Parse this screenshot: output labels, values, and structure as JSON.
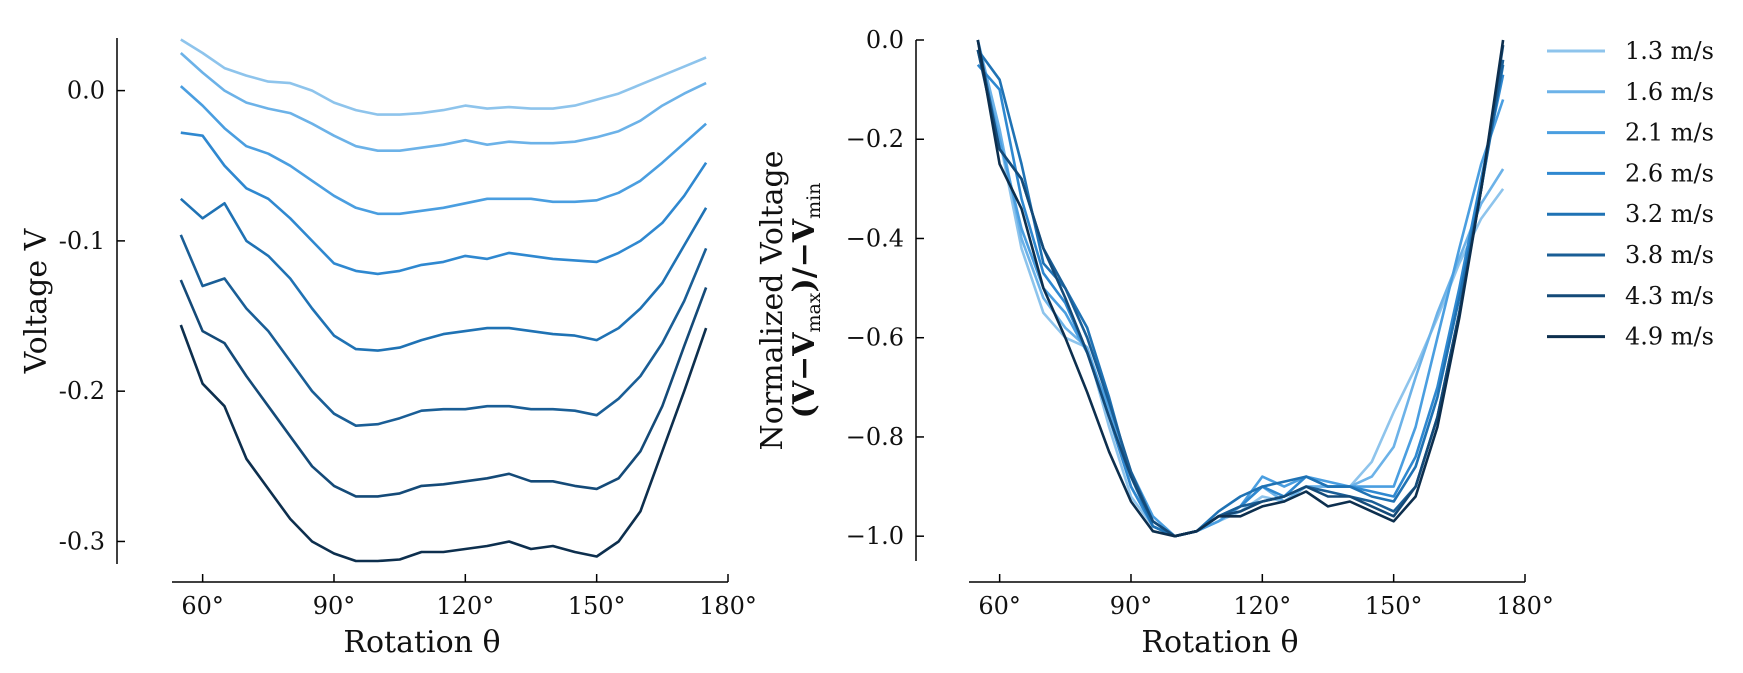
{
  "chart_data": [
    {
      "type": "line",
      "xlabel": "Rotation θ",
      "ylabel": "Voltage V",
      "xlim": [
        53,
        180
      ],
      "ylim": [
        -0.315,
        0.035
      ],
      "xticks": [
        {
          "value": 60,
          "label": "60°"
        },
        {
          "value": 90,
          "label": "90°"
        },
        {
          "value": 120,
          "label": "120°"
        },
        {
          "value": 150,
          "label": "150°"
        },
        {
          "value": 180,
          "label": "180°"
        }
      ],
      "yticks": [
        {
          "value": 0,
          "label": "0.0"
        },
        -0.1,
        -0.2,
        -0.3
      ],
      "grid": false,
      "x": [
        55,
        60,
        65,
        70,
        75,
        80,
        85,
        90,
        95,
        100,
        105,
        110,
        115,
        120,
        125,
        130,
        135,
        140,
        145,
        150,
        155,
        160,
        165,
        170,
        175
      ],
      "series": [
        {
          "color": "#8ec4ec",
          "values": [
            0.034,
            0.025,
            0.015,
            0.01,
            0.006,
            0.005,
            0.0,
            -0.008,
            -0.013,
            -0.016,
            -0.016,
            -0.015,
            -0.013,
            -0.01,
            -0.012,
            -0.011,
            -0.012,
            -0.012,
            -0.01,
            -0.006,
            -0.002,
            0.004,
            0.01,
            0.016,
            0.022
          ]
        },
        {
          "color": "#6cb2e8",
          "values": [
            0.025,
            0.012,
            0.0,
            -0.008,
            -0.012,
            -0.015,
            -0.022,
            -0.03,
            -0.037,
            -0.04,
            -0.04,
            -0.038,
            -0.036,
            -0.033,
            -0.036,
            -0.034,
            -0.035,
            -0.035,
            -0.034,
            -0.031,
            -0.027,
            -0.02,
            -0.01,
            -0.002,
            0.005
          ]
        },
        {
          "color": "#4a9ee0",
          "values": [
            0.003,
            -0.01,
            -0.025,
            -0.037,
            -0.042,
            -0.05,
            -0.06,
            -0.07,
            -0.078,
            -0.082,
            -0.082,
            -0.08,
            -0.078,
            -0.075,
            -0.072,
            -0.072,
            -0.072,
            -0.074,
            -0.074,
            -0.073,
            -0.068,
            -0.06,
            -0.048,
            -0.035,
            -0.022
          ]
        },
        {
          "color": "#2f88d0",
          "values": [
            -0.028,
            -0.03,
            -0.05,
            -0.065,
            -0.072,
            -0.085,
            -0.1,
            -0.115,
            -0.12,
            -0.122,
            -0.12,
            -0.116,
            -0.114,
            -0.11,
            -0.112,
            -0.108,
            -0.11,
            -0.112,
            -0.113,
            -0.114,
            -0.108,
            -0.1,
            -0.088,
            -0.07,
            -0.048
          ]
        },
        {
          "color": "#1f72b4",
          "values": [
            -0.072,
            -0.085,
            -0.075,
            -0.1,
            -0.11,
            -0.125,
            -0.145,
            -0.163,
            -0.172,
            -0.173,
            -0.171,
            -0.166,
            -0.162,
            -0.16,
            -0.158,
            -0.158,
            -0.16,
            -0.162,
            -0.163,
            -0.166,
            -0.158,
            -0.145,
            -0.128,
            -0.103,
            -0.078
          ]
        },
        {
          "color": "#1a5e96",
          "values": [
            -0.096,
            -0.13,
            -0.125,
            -0.145,
            -0.16,
            -0.18,
            -0.2,
            -0.215,
            -0.223,
            -0.222,
            -0.218,
            -0.213,
            -0.212,
            -0.212,
            -0.21,
            -0.21,
            -0.212,
            -0.212,
            -0.213,
            -0.216,
            -0.205,
            -0.19,
            -0.168,
            -0.14,
            -0.105
          ]
        },
        {
          "color": "#144a78",
          "values": [
            -0.126,
            -0.16,
            -0.168,
            -0.19,
            -0.21,
            -0.23,
            -0.25,
            -0.263,
            -0.27,
            -0.27,
            -0.268,
            -0.263,
            -0.262,
            -0.26,
            -0.258,
            -0.255,
            -0.26,
            -0.26,
            -0.263,
            -0.265,
            -0.258,
            -0.24,
            -0.21,
            -0.17,
            -0.131
          ]
        },
        {
          "color": "#0d2f4e",
          "values": [
            -0.156,
            -0.195,
            -0.21,
            -0.245,
            -0.265,
            -0.285,
            -0.3,
            -0.308,
            -0.313,
            -0.313,
            -0.312,
            -0.307,
            -0.307,
            -0.305,
            -0.303,
            -0.3,
            -0.305,
            -0.303,
            -0.307,
            -0.31,
            -0.3,
            -0.28,
            -0.24,
            -0.2,
            -0.158
          ]
        }
      ]
    },
    {
      "type": "line",
      "xlabel": "Rotation θ",
      "ylabel": "Normalized Voltage",
      "ylabel_math": [
        "(V−V",
        "max",
        ")/−V",
        "min"
      ],
      "xlim": [
        53,
        180
      ],
      "ylim": [
        -1.05,
        0
      ],
      "xticks": [
        {
          "value": 60,
          "label": "60°"
        },
        {
          "value": 90,
          "label": "90°"
        },
        {
          "value": 120,
          "label": "120°"
        },
        {
          "value": 150,
          "label": "150°"
        },
        {
          "value": 180,
          "label": "180°"
        }
      ],
      "yticks": [
        {
          "value": 0,
          "label": "0.0"
        },
        {
          "value": -0.2,
          "label": "−0.2"
        },
        {
          "value": -0.4,
          "label": "−0.4"
        },
        {
          "value": -0.6,
          "label": "−0.6"
        },
        {
          "value": -0.8,
          "label": "−0.8"
        },
        {
          "value": -1.0,
          "label": "−1.0"
        }
      ],
      "grid": false,
      "legend": "outside right",
      "x": [
        55,
        60,
        65,
        70,
        75,
        80,
        85,
        90,
        95,
        100,
        105,
        110,
        115,
        120,
        125,
        130,
        135,
        140,
        145,
        150,
        155,
        160,
        165,
        170,
        175
      ],
      "series": [
        {
          "name": "1.3 m/s",
          "color": "#8ec4ec",
          "values": [
            0,
            -0.2,
            -0.42,
            -0.55,
            -0.6,
            -0.62,
            -0.78,
            -0.92,
            -0.98,
            -1.0,
            -0.99,
            -0.97,
            -0.95,
            -0.92,
            -0.93,
            -0.9,
            -0.9,
            -0.9,
            -0.85,
            -0.75,
            -0.66,
            -0.56,
            -0.45,
            -0.36,
            -0.3
          ]
        },
        {
          "name": "1.6 m/s",
          "color": "#6cb2e8",
          "values": [
            0,
            -0.18,
            -0.4,
            -0.52,
            -0.58,
            -0.62,
            -0.75,
            -0.9,
            -0.98,
            -1.0,
            -0.99,
            -0.96,
            -0.94,
            -0.9,
            -0.93,
            -0.9,
            -0.9,
            -0.9,
            -0.88,
            -0.82,
            -0.68,
            -0.55,
            -0.44,
            -0.33,
            -0.26
          ]
        },
        {
          "name": "2.1 m/s",
          "color": "#4a9ee0",
          "values": [
            -0.02,
            -0.2,
            -0.38,
            -0.5,
            -0.55,
            -0.63,
            -0.74,
            -0.87,
            -0.96,
            -1.0,
            -0.99,
            -0.97,
            -0.94,
            -0.88,
            -0.9,
            -0.88,
            -0.89,
            -0.9,
            -0.9,
            -0.9,
            -0.78,
            -0.6,
            -0.42,
            -0.25,
            -0.12
          ]
        },
        {
          "name": "2.6 m/s",
          "color": "#2f88d0",
          "values": [
            -0.05,
            -0.1,
            -0.32,
            -0.47,
            -0.53,
            -0.63,
            -0.76,
            -0.9,
            -0.98,
            -1.0,
            -0.99,
            -0.96,
            -0.94,
            -0.9,
            -0.92,
            -0.88,
            -0.9,
            -0.9,
            -0.91,
            -0.92,
            -0.84,
            -0.7,
            -0.5,
            -0.28,
            -0.07
          ]
        },
        {
          "name": "3.2 m/s",
          "color": "#1f72b4",
          "values": [
            -0.02,
            -0.08,
            -0.25,
            -0.45,
            -0.5,
            -0.58,
            -0.72,
            -0.88,
            -0.98,
            -1.0,
            -0.99,
            -0.95,
            -0.92,
            -0.9,
            -0.89,
            -0.88,
            -0.9,
            -0.9,
            -0.92,
            -0.93,
            -0.86,
            -0.72,
            -0.52,
            -0.3,
            -0.05
          ]
        },
        {
          "name": "3.8 m/s",
          "color": "#1a5e96",
          "values": [
            0,
            -0.22,
            -0.28,
            -0.42,
            -0.5,
            -0.6,
            -0.73,
            -0.87,
            -0.97,
            -1.0,
            -0.99,
            -0.96,
            -0.94,
            -0.93,
            -0.92,
            -0.9,
            -0.91,
            -0.92,
            -0.93,
            -0.95,
            -0.9,
            -0.76,
            -0.55,
            -0.3,
            -0.04
          ]
        },
        {
          "name": "4.3 m/s",
          "color": "#144a78",
          "values": [
            -0.02,
            -0.22,
            -0.28,
            -0.42,
            -0.52,
            -0.63,
            -0.76,
            -0.88,
            -0.97,
            -1.0,
            -0.99,
            -0.96,
            -0.95,
            -0.93,
            -0.92,
            -0.9,
            -0.92,
            -0.92,
            -0.94,
            -0.96,
            -0.9,
            -0.76,
            -0.55,
            -0.3,
            -0.01
          ]
        },
        {
          "name": "4.9 m/s",
          "color": "#0d2f4e",
          "values": [
            0,
            -0.25,
            -0.34,
            -0.5,
            -0.6,
            -0.71,
            -0.83,
            -0.93,
            -0.99,
            -1.0,
            -0.99,
            -0.96,
            -0.96,
            -0.94,
            -0.93,
            -0.91,
            -0.94,
            -0.93,
            -0.95,
            -0.97,
            -0.92,
            -0.78,
            -0.56,
            -0.3,
            0
          ]
        }
      ]
    }
  ]
}
